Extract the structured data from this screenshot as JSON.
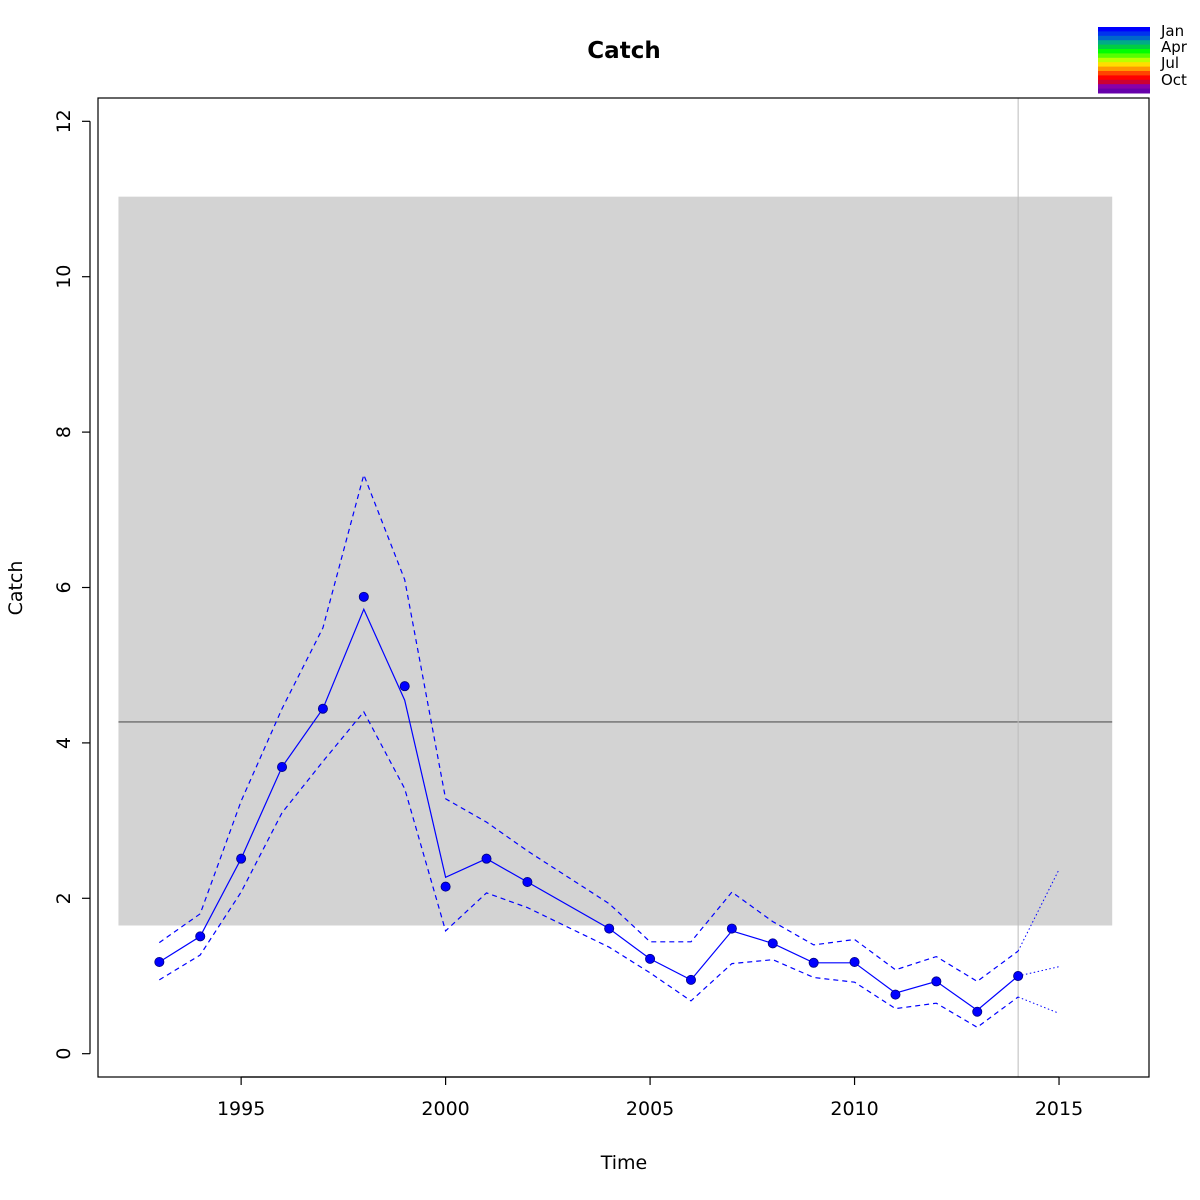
{
  "chart_data": {
    "type": "line",
    "title": "Catch",
    "xlabel": "Time",
    "ylabel": "Catch",
    "xlim": [
      1991.5,
      2017.2
    ],
    "ylim": [
      -0.3,
      12.3
    ],
    "x_ticks": [
      1995,
      2000,
      2005,
      2010,
      2015
    ],
    "y_ticks": [
      0,
      2,
      4,
      6,
      8,
      10,
      12
    ],
    "grid": false,
    "reference_band": {
      "x": [
        1992,
        2016.3
      ],
      "y": [
        1.65,
        11.03
      ],
      "color": "#d3d3d3"
    },
    "reference_line": {
      "y": 4.27,
      "x": [
        1992,
        2016.3
      ],
      "color": "#555555"
    },
    "vertical_marker": {
      "x": 2014,
      "color": "#bbbbbb"
    },
    "observed": {
      "x": [
        1993,
        1994,
        1995,
        1996,
        1997,
        1998,
        1999,
        2000,
        2001,
        2002,
        2004,
        2005,
        2006,
        2007,
        2008,
        2009,
        2010,
        2011,
        2012,
        2013,
        2014
      ],
      "y": [
        1.18,
        1.51,
        2.51,
        3.69,
        4.44,
        5.88,
        4.73,
        2.15,
        2.51,
        2.21,
        1.61,
        1.22,
        0.95,
        1.61,
        1.42,
        1.17,
        1.18,
        0.76,
        0.93,
        0.54,
        1.0
      ],
      "color": "#0000ff"
    },
    "fit": {
      "x": [
        1993,
        1994,
        1995,
        1996,
        1997,
        1998,
        1999,
        2000,
        2001,
        2002,
        2004,
        2005,
        2006,
        2007,
        2008,
        2009,
        2010,
        2011,
        2012,
        2013,
        2014
      ],
      "y": [
        1.18,
        1.51,
        2.51,
        3.69,
        4.44,
        5.72,
        4.55,
        2.27,
        2.51,
        2.21,
        1.61,
        1.22,
        0.95,
        1.58,
        1.42,
        1.17,
        1.17,
        0.78,
        0.93,
        0.56,
        1.0
      ],
      "upper": [
        1.43,
        1.8,
        3.25,
        4.44,
        5.48,
        7.45,
        6.1,
        3.28,
        2.98,
        2.61,
        1.93,
        1.44,
        1.44,
        2.08,
        1.7,
        1.4,
        1.47,
        1.08,
        1.25,
        0.93,
        1.32
      ],
      "lower": [
        0.95,
        1.27,
        2.08,
        3.1,
        3.76,
        4.4,
        3.41,
        1.58,
        2.07,
        1.88,
        1.37,
        1.04,
        0.68,
        1.16,
        1.21,
        0.98,
        0.92,
        0.58,
        0.65,
        0.34,
        0.73
      ],
      "color": "#0000ff"
    },
    "projection": {
      "x": [
        2014,
        2015
      ],
      "mid": [
        1.0,
        1.12
      ],
      "upper": [
        1.32,
        2.37
      ],
      "lower": [
        0.73,
        0.52
      ],
      "color": "#0000ff"
    },
    "legend": {
      "placement": "top-right",
      "labels": [
        "Jan",
        "Apr",
        "Jul",
        "Oct"
      ],
      "colors": [
        "#0000ff",
        "#0033ee",
        "#0066cc",
        "#00aa88",
        "#00cc44",
        "#00ff00",
        "#55ff00",
        "#bbff00",
        "#ffdd00",
        "#ff9900",
        "#ff4400",
        "#ff0000",
        "#cc0033",
        "#8800aa",
        "#6600aa"
      ]
    }
  }
}
